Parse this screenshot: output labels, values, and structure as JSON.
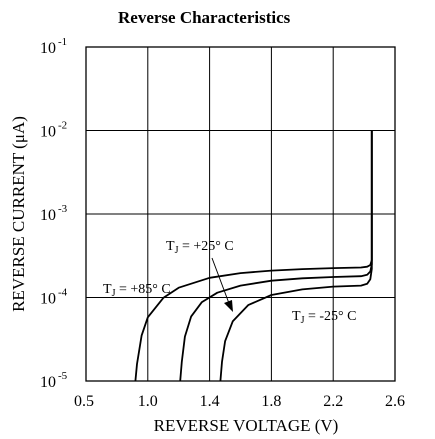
{
  "chart_data": {
    "type": "line",
    "title": "Reverse Characteristics",
    "xlabel": "REVERSE VOLTAGE (V)",
    "ylabel": "REVERSE CURRENT (μA)",
    "y_scale": "log",
    "xlim": [
      0.6,
      2.6
    ],
    "ylim": [
      1e-05,
      0.1
    ],
    "x_ticks": [
      {
        "value": 0.5,
        "label": "0.5"
      },
      {
        "value": 1.0,
        "label": "1.0"
      },
      {
        "value": 1.4,
        "label": "1.4"
      },
      {
        "value": 1.8,
        "label": "1.8"
      },
      {
        "value": 2.2,
        "label": "2.2"
      },
      {
        "value": 2.6,
        "label": "2.6"
      }
    ],
    "y_ticks": [
      {
        "value": 0.1,
        "base": "10",
        "exp": "-1"
      },
      {
        "value": 0.01,
        "base": "10",
        "exp": "-2"
      },
      {
        "value": 0.001,
        "base": "10",
        "exp": "-3"
      },
      {
        "value": 0.0001,
        "base": "10",
        "exp": "-4"
      },
      {
        "value": 1e-05,
        "base": "10",
        "exp": "-5"
      }
    ],
    "grid": true,
    "series": [
      {
        "id": "tj85",
        "label_main": "T",
        "label_sub": "J",
        "label_rest": " = +85° C",
        "x": [
          0.92,
          0.93,
          0.96,
          1.0,
          1.1,
          1.2,
          1.4,
          1.6,
          1.8,
          2.0,
          2.2,
          2.38,
          2.42,
          2.44,
          2.45,
          2.45
        ],
        "y": [
          1e-05,
          1.6e-05,
          3.5e-05,
          5.8e-05,
          9.9e-05,
          0.000131,
          0.000172,
          0.000196,
          0.00021,
          0.000219,
          0.000225,
          0.000229,
          0.000234,
          0.000245,
          0.00028,
          0.01
        ]
      },
      {
        "id": "tj25",
        "label_main": "T",
        "label_sub": "J",
        "label_rest": " = +25° C",
        "x": [
          1.21,
          1.22,
          1.24,
          1.28,
          1.35,
          1.45,
          1.6,
          1.8,
          2.0,
          2.2,
          2.38,
          2.42,
          2.44,
          2.45,
          2.45
        ],
        "y": [
          1e-05,
          1.7e-05,
          3.4e-05,
          5.9e-05,
          8.8e-05,
          0.000114,
          0.000139,
          0.000159,
          0.00017,
          0.000176,
          0.00018,
          0.000187,
          0.000205,
          0.00025,
          0.01
        ]
      },
      {
        "id": "tjm25",
        "label_main": "T",
        "label_sub": "J",
        "label_rest": " = -25° C",
        "x": [
          1.47,
          1.48,
          1.5,
          1.55,
          1.65,
          1.8,
          2.0,
          2.2,
          2.38,
          2.42,
          2.44,
          2.45,
          2.45
        ],
        "y": [
          1e-05,
          1.7e-05,
          3e-05,
          5.2e-05,
          8.1e-05,
          0.000107,
          0.000125,
          0.000135,
          0.000139,
          0.000146,
          0.000165,
          0.00022,
          0.01
        ]
      }
    ]
  }
}
